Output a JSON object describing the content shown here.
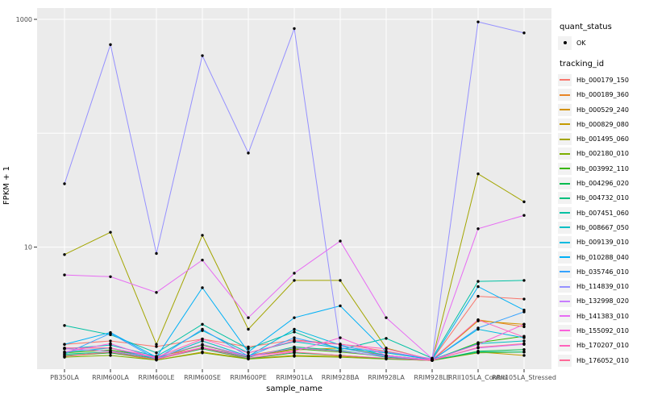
{
  "figure": {
    "x_axis": {
      "title": "sample_name"
    },
    "y_axis": {
      "title": "FPKM + 1",
      "tick_labels": [
        "1000",
        "10"
      ],
      "tick_values": [
        1000,
        10
      ]
    },
    "legend": {
      "quant_status": {
        "title": "quant_status",
        "items": [
          {
            "label": "OK",
            "marker": "black-point"
          }
        ]
      },
      "tracking_id": {
        "title": "tracking_id"
      }
    }
  },
  "chart_data": {
    "type": "line",
    "xlabel": "sample_name",
    "ylabel": "FPKM + 1",
    "y_scale": "log10",
    "ylim": [
      1,
      1100
    ],
    "y_ticks": [
      10,
      1000
    ],
    "y_gridlines": [
      10,
      100,
      1000
    ],
    "grid": true,
    "legend_position": "right",
    "panel_bg": "#EBEBEB",
    "grid_color": "#FFFFFF",
    "point_color": "#000000",
    "tick_text_color": "#4D4D4D",
    "categories": [
      "PB350LA",
      "RRIM600LA",
      "RRIM600LE",
      "RRIM600SE",
      "RRIM600PE",
      "RRIM901LA",
      "RRIM928BA",
      "RRIM928LA",
      "RRIM928LE",
      "RRII105LA_Control",
      "RRII105LA_Stressed"
    ],
    "series": [
      {
        "name": "Hb_000179_150",
        "color": "#F8766D",
        "values": [
          1.4,
          1.5,
          1.34,
          1.56,
          1.33,
          1.53,
          1.41,
          1.22,
          1.03,
          3.7,
          3.5
        ]
      },
      {
        "name": "Hb_000189_360",
        "color": "#E88526",
        "values": [
          1.28,
          1.22,
          1.1,
          1.3,
          1.12,
          1.3,
          1.22,
          1.1,
          1.02,
          2.3,
          2.0
        ]
      },
      {
        "name": "Hb_000529_240",
        "color": "#D39200",
        "values": [
          1.3,
          1.3,
          1.05,
          1.5,
          1.1,
          1.25,
          1.3,
          1.12,
          1.02,
          2.25,
          2.1
        ]
      },
      {
        "name": "Hb_000829_080",
        "color": "#C49A00",
        "values": [
          1.1,
          1.18,
          1.02,
          1.2,
          1.05,
          1.12,
          1.1,
          1.05,
          1.01,
          1.2,
          1.12
        ]
      },
      {
        "name": "Hb_001495_060",
        "color": "#A3A500",
        "values": [
          8.6,
          13.5,
          1.4,
          12.7,
          1.9,
          5.1,
          5.1,
          1.3,
          1.02,
          44.0,
          25.0
        ]
      },
      {
        "name": "Hb_002180_010",
        "color": "#7CAE00",
        "values": [
          1.08,
          1.12,
          1.02,
          1.18,
          1.04,
          1.1,
          1.08,
          1.04,
          1.01,
          1.18,
          1.2
        ]
      },
      {
        "name": "Hb_003992_110",
        "color": "#39B600",
        "values": [
          1.18,
          1.25,
          1.08,
          1.38,
          1.1,
          1.28,
          1.2,
          1.1,
          1.02,
          1.45,
          1.65
        ]
      },
      {
        "name": "Hb_004296_020",
        "color": "#00BB4E",
        "values": [
          1.12,
          1.18,
          1.04,
          1.28,
          1.05,
          1.18,
          1.12,
          1.05,
          1.01,
          1.22,
          1.26
        ]
      },
      {
        "name": "Hb_004732_010",
        "color": "#00BF7D",
        "values": [
          1.15,
          1.2,
          1.06,
          1.3,
          1.08,
          1.33,
          1.24,
          1.08,
          1.02,
          1.2,
          1.2
        ]
      },
      {
        "name": "Hb_007451_060",
        "color": "#00C1A3",
        "values": [
          2.05,
          1.7,
          1.18,
          2.1,
          1.28,
          1.8,
          1.26,
          1.58,
          1.06,
          5.0,
          5.1
        ]
      },
      {
        "name": "Hb_008667_050",
        "color": "#00BFC4",
        "values": [
          1.28,
          1.38,
          1.1,
          1.85,
          1.18,
          1.48,
          1.3,
          1.18,
          1.03,
          1.42,
          1.5
        ]
      },
      {
        "name": "Hb_009139_010",
        "color": "#00BAE0",
        "values": [
          1.2,
          1.3,
          1.05,
          1.5,
          1.1,
          1.9,
          1.38,
          1.12,
          1.02,
          1.9,
          1.6
        ]
      },
      {
        "name": "Hb_010288_040",
        "color": "#00B0F6",
        "values": [
          1.4,
          1.78,
          1.08,
          4.4,
          1.2,
          2.4,
          3.05,
          1.2,
          1.03,
          4.5,
          2.8
        ]
      },
      {
        "name": "Hb_035746_010",
        "color": "#35A2FF",
        "values": [
          1.15,
          1.75,
          1.04,
          1.9,
          1.1,
          1.6,
          1.3,
          1.1,
          1.02,
          1.95,
          2.7
        ]
      },
      {
        "name": "Hb_114839_010",
        "color": "#9590FF",
        "values": [
          36.0,
          600.0,
          8.8,
          480.0,
          67.0,
          830.0,
          1.35,
          1.2,
          1.05,
          950.0,
          760.0
        ]
      },
      {
        "name": "Hb_132998_020",
        "color": "#C77CFF",
        "values": [
          1.28,
          1.22,
          1.08,
          1.4,
          1.1,
          1.3,
          1.22,
          1.1,
          1.02,
          1.3,
          1.4
        ]
      },
      {
        "name": "Hb_141383_010",
        "color": "#E76BF3",
        "values": [
          5.7,
          5.5,
          4.0,
          7.7,
          2.4,
          5.9,
          11.3,
          2.4,
          1.05,
          14.5,
          19.0
        ]
      },
      {
        "name": "Hb_155092_010",
        "color": "#FA62DB",
        "values": [
          1.2,
          1.42,
          1.05,
          1.32,
          1.1,
          1.22,
          1.6,
          1.12,
          1.02,
          1.4,
          2.1
        ]
      },
      {
        "name": "Hb_170207_010",
        "color": "#FF62BC",
        "values": [
          1.3,
          1.3,
          1.08,
          1.56,
          1.18,
          1.5,
          1.4,
          1.28,
          1.03,
          2.3,
          1.62
        ]
      },
      {
        "name": "Hb_176052_010",
        "color": "#FF6A98",
        "values": [
          1.1,
          1.2,
          1.03,
          1.3,
          1.06,
          1.2,
          1.12,
          1.06,
          1.01,
          1.32,
          1.42
        ]
      }
    ]
  }
}
